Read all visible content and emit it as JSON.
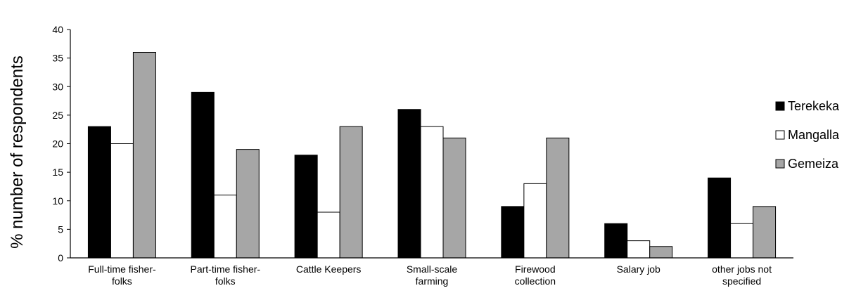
{
  "chart_data": {
    "type": "bar",
    "title": "",
    "xlabel": "",
    "ylabel": "% number of respondents",
    "ylim": [
      0,
      40
    ],
    "yticks": [
      "0",
      "5",
      "10",
      "15",
      "20",
      "25",
      "30",
      "35",
      "40"
    ],
    "grid": false,
    "legend_position": "right",
    "categories": [
      [
        "Full-time fisher-",
        "folks"
      ],
      [
        "Part-time fisher-",
        "folks"
      ],
      [
        "Cattle Keepers"
      ],
      [
        "Small-scale",
        "farming"
      ],
      [
        "Firewood",
        "collection"
      ],
      [
        "Salary job"
      ],
      [
        "other jobs not",
        "specified"
      ]
    ],
    "series": [
      {
        "name": "Terekeka",
        "color": "#000000",
        "values": [
          23,
          29,
          18,
          26,
          9,
          6,
          14
        ]
      },
      {
        "name": "Mangalla",
        "color": "#ffffff",
        "values": [
          20,
          11,
          8,
          23,
          13,
          3,
          6
        ]
      },
      {
        "name": "Gemeiza",
        "color": "#a6a6a6",
        "values": [
          36,
          19,
          23,
          21,
          21,
          2,
          9
        ]
      }
    ]
  }
}
